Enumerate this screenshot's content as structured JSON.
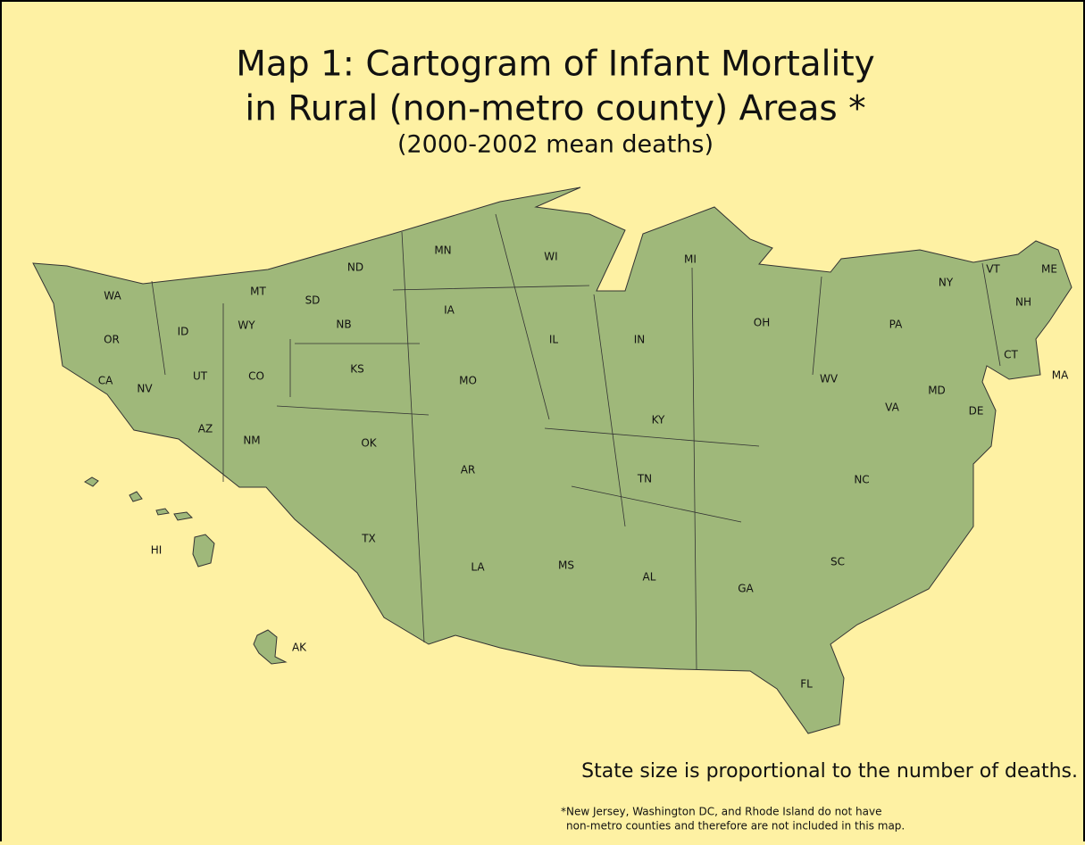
{
  "title": {
    "line1": "Map 1:  Cartogram of Infant Mortality",
    "line2": "in Rural (non-metro county) Areas *",
    "subtitle": "(2000-2002 mean deaths)"
  },
  "states": [
    "WA",
    "OR",
    "CA",
    "NV",
    "ID",
    "MT",
    "WY",
    "UT",
    "CO",
    "AZ",
    "NM",
    "ND",
    "SD",
    "NB",
    "KS",
    "OK",
    "TX",
    "MN",
    "IA",
    "MO",
    "AR",
    "LA",
    "WI",
    "IL",
    "MS",
    "MI",
    "IN",
    "KY",
    "TN",
    "AL",
    "OH",
    "WV",
    "VA",
    "NC",
    "SC",
    "GA",
    "FL",
    "PA",
    "NY",
    "MD",
    "DE",
    "VT",
    "NH",
    "ME",
    "CT",
    "MA",
    "HI",
    "AK"
  ],
  "legend_note": "State size is proportional to the number of deaths.",
  "footnote": {
    "line1": "*New Jersey, Washington DC, and Rhode Island do not have",
    "line2": "non-metro counties and therefore are not included in this map."
  }
}
